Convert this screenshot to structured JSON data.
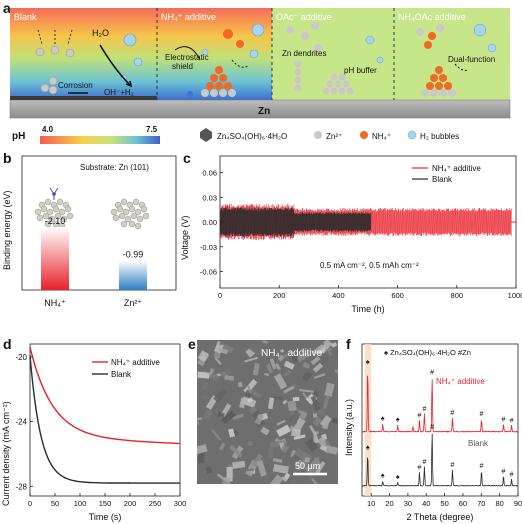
{
  "panels": {
    "a": "a",
    "b": "b",
    "c": "c",
    "d": "d",
    "e": "e",
    "f": "f"
  },
  "panel_a": {
    "sections": [
      "Blank",
      "NH₄⁺ additive",
      "OAc⁻ additive",
      "NH₄OAc additive"
    ],
    "labels": {
      "h2o": "H₂O",
      "corrosion": "Corrosion",
      "oh_h2": "OH⁻+H₂",
      "electrostatic": "Electrostatic",
      "shield": "shield",
      "zn_dendrites": "Zn dendrites",
      "ph_buffer": "pH buffer",
      "dual_function": "Dual-function",
      "zn": "Zn"
    },
    "ph_scale": {
      "label": "pH",
      "min": "4.0",
      "max": "7.5"
    },
    "legend": [
      "Zn₄SO₄(OH)₆·4H₂O",
      "Zn²⁺",
      "NH₄⁺",
      "H₂ bubbles"
    ],
    "colors": {
      "zhs": "#555555",
      "zn_ion": "#c9c9c9",
      "nh4": "#f26a21",
      "h2": "#a8d4ee"
    }
  },
  "chart_data": [
    {
      "panel": "b",
      "type": "bar",
      "categories": [
        "NH₄⁺",
        "Zn²⁺"
      ],
      "values": [
        -2.1,
        -0.99
      ],
      "value_labels": [
        "-2.10",
        "-0.99"
      ],
      "ylabel": "Binding energy (eV)",
      "annotation": "Substrate: Zn (101)",
      "colors": [
        "#e8202a",
        "#2f7fc4"
      ]
    },
    {
      "panel": "c",
      "type": "line",
      "xlabel": "Time (h)",
      "ylabel": "Voltage (V)",
      "xlim": [
        0,
        1000
      ],
      "ylim": [
        -0.08,
        0.08
      ],
      "xticks": [
        "0",
        "200",
        "400",
        "600",
        "800",
        "1000"
      ],
      "yticks": [
        "-0.06",
        "-0.03",
        "0.00",
        "0.03",
        "0.06"
      ],
      "ytick_values": [
        -0.06,
        -0.03,
        0.0,
        0.03,
        0.06
      ],
      "annotation": "0.5 mA cm⁻², 0.5 mAh cm⁻²",
      "series": [
        {
          "name": "NH₄⁺ additive",
          "color": "#e8202a",
          "end_time": 985,
          "amplitude": [
            0.022,
            0.017
          ]
        },
        {
          "name": "Blank",
          "color": "#2b2b2b",
          "end_time": 510,
          "amplitude": [
            0.018,
            0.012
          ]
        }
      ]
    },
    {
      "panel": "d",
      "type": "line",
      "xlabel": "Time (s)",
      "ylabel": "Current density (mA cm⁻²)",
      "xlim": [
        0,
        300
      ],
      "ylim": [
        -28.6,
        -19.2
      ],
      "xticks": [
        "0",
        "50",
        "100",
        "150",
        "200",
        "250",
        "300"
      ],
      "yticks": [
        "-20",
        "-24",
        "-28"
      ],
      "ytick_values": [
        -20,
        -24,
        -28
      ],
      "series": [
        {
          "name": "NH₄⁺ additive",
          "color": "#e8202a",
          "start": -19.4,
          "plateau": -25.0,
          "tau": 45
        },
        {
          "name": "Blank",
          "color": "#2b2b2b",
          "start": -19.9,
          "plateau": -27.8,
          "tau": 22
        }
      ]
    },
    {
      "panel": "f",
      "type": "line",
      "xlabel": "2 Theta (degree)",
      "ylabel": "Intensity (a.u.)",
      "xlim": [
        5,
        90
      ],
      "xticks": [
        "10",
        "20",
        "30",
        "40",
        "50",
        "60",
        "70",
        "80",
        "90"
      ],
      "legend_text": "♠ Zn₄SO₄(OH)₆·4H₂O   #Zn",
      "series": [
        {
          "name": "NH₄⁺ additive",
          "color": "#e8202a",
          "peaks": [
            [
              8.1,
              1.0
            ],
            [
              16.3,
              0.12
            ],
            [
              24.5,
              0.1
            ],
            [
              32.8,
              0.08
            ],
            [
              36.3,
              0.18
            ],
            [
              39.0,
              0.28
            ],
            [
              43.2,
              0.85
            ],
            [
              54.3,
              0.22
            ],
            [
              70.1,
              0.2
            ],
            [
              82.1,
              0.12
            ],
            [
              86.5,
              0.1
            ]
          ]
        },
        {
          "name": "Blank",
          "color": "#2b2b2b",
          "peaks": [
            [
              8.1,
              0.6
            ],
            [
              16.3,
              0.08
            ],
            [
              24.5,
              0.06
            ],
            [
              36.3,
              0.25
            ],
            [
              39.0,
              0.35
            ],
            [
              43.2,
              1.0
            ],
            [
              54.3,
              0.3
            ],
            [
              70.1,
              0.28
            ],
            [
              82.1,
              0.18
            ],
            [
              86.5,
              0.12
            ]
          ]
        }
      ],
      "zhs_marks": [
        8.1,
        16.3,
        24.5
      ],
      "zn_marks": [
        36.3,
        39.0,
        43.2,
        54.3,
        70.1,
        82.1,
        86.5
      ]
    }
  ],
  "panel_e": {
    "label": "NH₄⁺ additive",
    "scale_bar": "50 μm"
  }
}
